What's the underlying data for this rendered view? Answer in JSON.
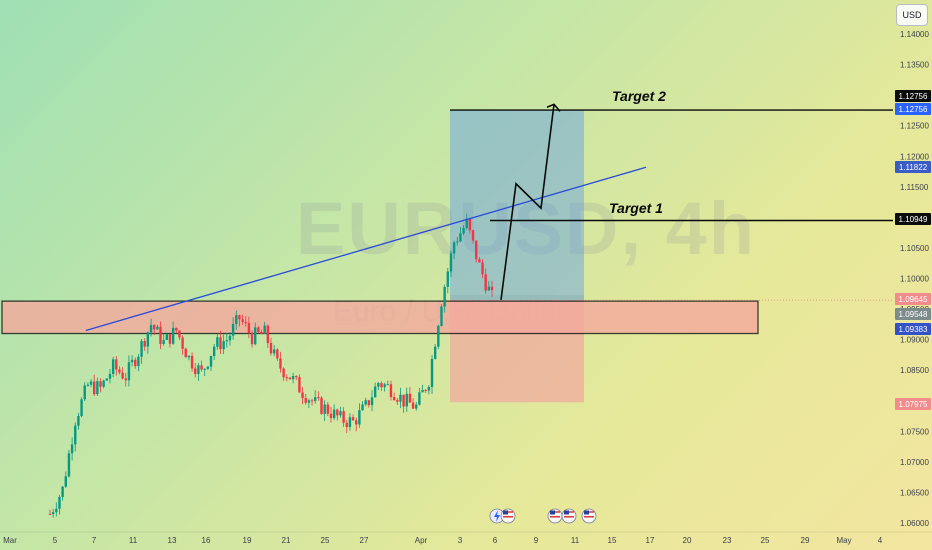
{
  "watermark": {
    "symbol": "EURUSD, 4h",
    "name": "Euro / U.S. Dollar"
  },
  "currency_button": "USD",
  "annotations": {
    "target1": "Target 1",
    "target2": "Target 2"
  },
  "price_badges": [
    {
      "value": "1.12756",
      "color": "#0c0c0c"
    },
    {
      "value": "1.12756",
      "color": "#2962ff"
    },
    {
      "value": "1.11822",
      "color": "#3a5cc9"
    },
    {
      "value": "1.10949",
      "color": "#0c0c0c"
    },
    {
      "value": "1.09645",
      "color": "#f28c8c"
    },
    {
      "value": "1.09548",
      "color": "#7d8b8a"
    },
    {
      "value": "1.09383",
      "color": "#3152c8"
    },
    {
      "value": "1.07975",
      "color": "#f28c8c"
    }
  ],
  "event_icons": [
    "flash-icon",
    "us-flag-icon",
    "us-flag-icon",
    "us-flag-icon",
    "us-flag-icon"
  ],
  "colors": {
    "candle_up": "#089981",
    "candle_down": "#f23645",
    "zone_fill": "#f4a99e",
    "target_box": "#5d9be8",
    "stop_box": "#f2a69e",
    "trendline": "#2b4bd8"
  },
  "chart_data": {
    "type": "candlestick",
    "symbol": "EURUSD",
    "timeframe": "4h",
    "y_axis": {
      "ticks": [
        "1.14000",
        "1.13500",
        "1.13000",
        "1.12500",
        "1.12000",
        "1.11500",
        "1.11000",
        "1.10500",
        "1.10000",
        "1.09500",
        "1.09000",
        "1.08500",
        "1.08000",
        "1.07500",
        "1.07000",
        "1.06500",
        "1.06000"
      ],
      "ylim": [
        1.0595,
        1.1427
      ]
    },
    "x_axis": {
      "ticks": [
        "Mar",
        "5",
        "7",
        "11",
        "13",
        "16",
        "19",
        "21",
        "25",
        "27",
        "Apr",
        "3",
        "6",
        "9",
        "11",
        "15",
        "17",
        "20",
        "23",
        "25",
        "29",
        "May",
        "4"
      ]
    },
    "candles_close_path": [
      {
        "t": 0,
        "v": 1.0615
      },
      {
        "t": 2,
        "v": 1.0655
      },
      {
        "t": 4,
        "v": 1.077
      },
      {
        "t": 6,
        "v": 1.0825
      },
      {
        "t": 8,
        "v": 1.082
      },
      {
        "t": 10,
        "v": 1.0855
      },
      {
        "t": 12,
        "v": 1.084
      },
      {
        "t": 14,
        "v": 1.088
      },
      {
        "t": 16,
        "v": 1.0925
      },
      {
        "t": 18,
        "v": 1.0895
      },
      {
        "t": 20,
        "v": 1.0915
      },
      {
        "t": 22,
        "v": 1.087
      },
      {
        "t": 24,
        "v": 1.0845
      },
      {
        "t": 26,
        "v": 1.089
      },
      {
        "t": 28,
        "v": 1.09
      },
      {
        "t": 30,
        "v": 1.0935
      },
      {
        "t": 32,
        "v": 1.0905
      },
      {
        "t": 34,
        "v": 1.091
      },
      {
        "t": 36,
        "v": 1.086
      },
      {
        "t": 38,
        "v": 1.084
      },
      {
        "t": 40,
        "v": 1.0815
      },
      {
        "t": 42,
        "v": 1.0795
      },
      {
        "t": 44,
        "v": 1.0785
      },
      {
        "t": 46,
        "v": 1.077
      },
      {
        "t": 48,
        "v": 1.0765
      },
      {
        "t": 50,
        "v": 1.079
      },
      {
        "t": 52,
        "v": 1.083
      },
      {
        "t": 54,
        "v": 1.082
      },
      {
        "t": 56,
        "v": 1.08
      },
      {
        "t": 58,
        "v": 1.079
      },
      {
        "t": 60,
        "v": 1.0835
      },
      {
        "t": 62,
        "v": 1.0965
      },
      {
        "t": 64,
        "v": 1.106
      },
      {
        "t": 66,
        "v": 1.109
      },
      {
        "t": 68,
        "v": 1.102
      },
      {
        "t": 70,
        "v": 1.0968
      }
    ],
    "support_zone": {
      "low": 1.091,
      "high": 1.0963,
      "label": ""
    },
    "trendline": {
      "from": {
        "t": 12,
        "v": 1.0915
      },
      "to": {
        "t": 96,
        "v": 1.1182
      }
    },
    "position": {
      "entry": 1.0965,
      "target": 1.12756,
      "stop": 1.07975
    },
    "target_levels": [
      {
        "name": "Target 1",
        "value": 1.10949
      },
      {
        "name": "Target 2",
        "value": 1.12756
      }
    ],
    "projected_path": [
      {
        "t": 71,
        "v": 1.0965
      },
      {
        "t": 76,
        "v": 1.1155
      },
      {
        "t": 80,
        "v": 1.1115
      },
      {
        "t": 86,
        "v": 1.1285
      }
    ]
  }
}
